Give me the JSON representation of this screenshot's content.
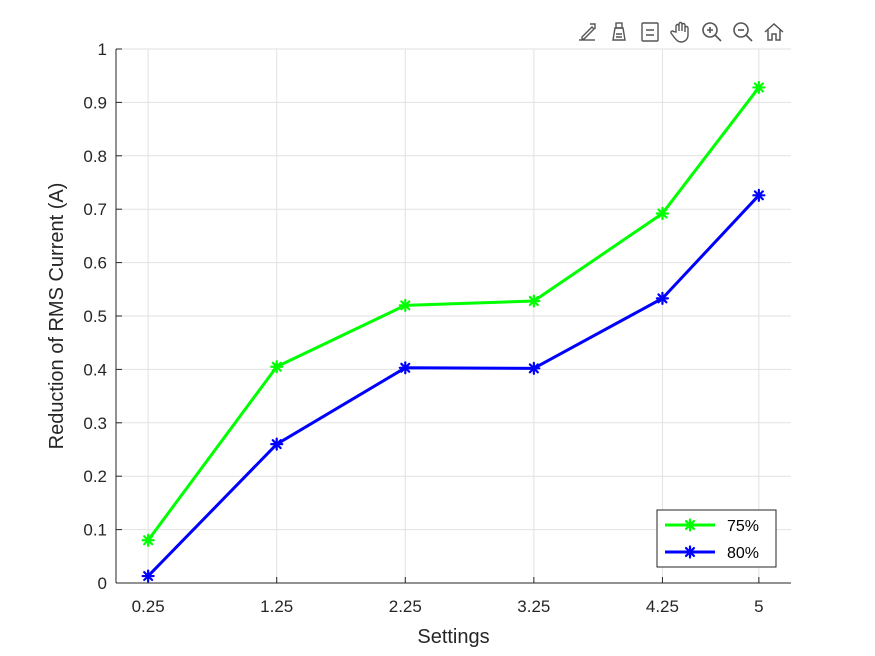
{
  "toolbar": {
    "icons": [
      "export-icon",
      "brush-icon",
      "data-tips-icon",
      "pan-icon",
      "zoom-in-icon",
      "zoom-out-icon",
      "home-icon"
    ]
  },
  "chart_data": {
    "type": "line",
    "xlabel": "Settings",
    "ylabel": "Reduction of RMS Current (A)",
    "categories": [
      "0.25",
      "1.25",
      "2.25",
      "3.25",
      "4.25",
      "5"
    ],
    "x": [
      0.25,
      1.25,
      2.25,
      3.25,
      4.25,
      5
    ],
    "ylim": [
      0,
      1
    ],
    "yticks": [
      0,
      0.1,
      0.2,
      0.3,
      0.4,
      0.5,
      0.6,
      0.7,
      0.8,
      0.9,
      1
    ],
    "yticklabels": [
      "0",
      "0.1",
      "0.2",
      "0.3",
      "0.4",
      "0.5",
      "0.6",
      "0.7",
      "0.8",
      "0.9",
      "1"
    ],
    "grid": true,
    "legend": "bottom-right",
    "marker": "asterisk",
    "series": [
      {
        "name": "75%",
        "color": "#00ff00",
        "values": [
          0.08,
          0.405,
          0.52,
          0.528,
          0.692,
          0.928
        ]
      },
      {
        "name": "80%",
        "color": "#0000ff",
        "values": [
          0.013,
          0.26,
          0.403,
          0.402,
          0.533,
          0.726
        ]
      }
    ]
  }
}
